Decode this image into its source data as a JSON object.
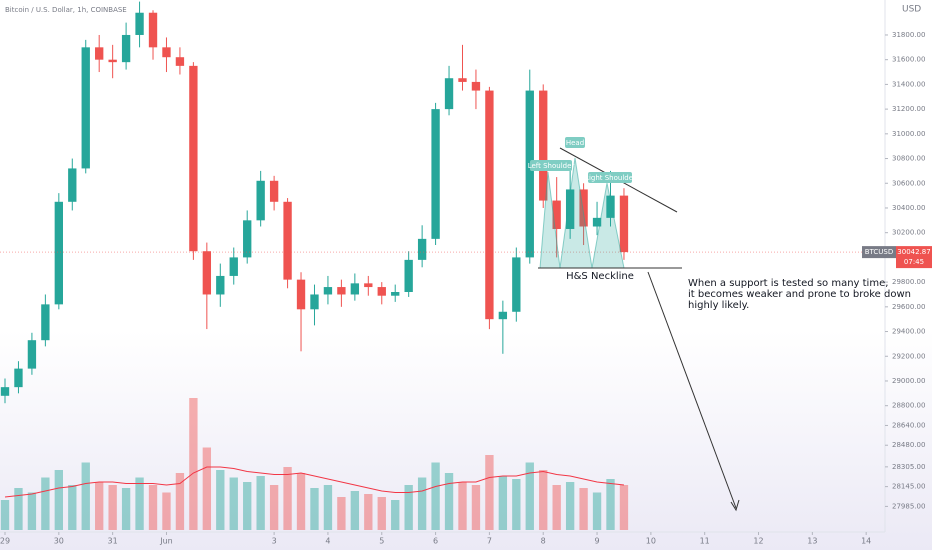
{
  "chart_data": {
    "type": "candlestick",
    "title": "Bitcoin / U.S. Dollar, 1h, COINBASE",
    "currency": "USD",
    "symbol": "BTCUSD",
    "price_label": "30042.87",
    "countdown": "07:45",
    "annotations": {
      "head": "Head",
      "left_shoulder": "Left Shoulder",
      "right_shoulder": "Right Shoulder",
      "neckline": "H&S Neckline",
      "note": [
        "When a support is tested so many time,",
        "it becomes weaker and prone to broke down",
        "highly likely."
      ]
    },
    "up_color": "#26a69a",
    "down_color": "#ef5350",
    "ma_color": "#f23645",
    "x": [
      0,
      0.25,
      0.5,
      0.75,
      1,
      1.25,
      1.5,
      1.75,
      2,
      2.25,
      2.5,
      2.75,
      3,
      3.25,
      3.5,
      3.75,
      4,
      4.25,
      4.5,
      4.75,
      5,
      5.25,
      5.5,
      5.75,
      6,
      6.25,
      6.5,
      6.75,
      7,
      7.25,
      7.5,
      7.75,
      8,
      8.25,
      8.5,
      8.75,
      9,
      9.25,
      9.5,
      9.75,
      10,
      10.25,
      10.5,
      10.75,
      11,
      11.25,
      11.5
    ],
    "open": [
      28880,
      28950,
      29100,
      29330,
      29620,
      30450,
      30720,
      31700,
      31600,
      31580,
      31800,
      31980,
      31700,
      31620,
      31550,
      30050,
      29700,
      29850,
      30000,
      30300,
      30620,
      30450,
      29820,
      29580,
      29700,
      29760,
      29700,
      29790,
      29760,
      29690,
      29720,
      29980,
      30150,
      31200,
      31450,
      31420,
      31350,
      29500,
      29560,
      30000,
      31350,
      30460,
      30230,
      30550,
      30250,
      30320,
      30500
    ],
    "high": [
      29020,
      29160,
      29390,
      29700,
      30520,
      30800,
      31760,
      31800,
      31720,
      31900,
      32070,
      32000,
      31780,
      31700,
      31580,
      30120,
      29950,
      30080,
      30380,
      30700,
      30660,
      30480,
      29880,
      29780,
      29850,
      29820,
      29870,
      29850,
      29800,
      29780,
      30050,
      30260,
      31250,
      31550,
      31720,
      31520,
      31380,
      29650,
      30080,
      31520,
      31400,
      30650,
      30700,
      30600,
      30450,
      30700,
      30560
    ],
    "low": [
      28820,
      28900,
      29050,
      29280,
      29580,
      30380,
      30680,
      31500,
      31450,
      31520,
      31700,
      31600,
      31500,
      31480,
      29980,
      29420,
      29600,
      29780,
      29950,
      30250,
      30380,
      29750,
      29240,
      29450,
      29620,
      29600,
      29650,
      29690,
      29620,
      29640,
      29680,
      29920,
      30100,
      31150,
      31350,
      31200,
      29420,
      29220,
      29480,
      29950,
      30400,
      30000,
      30150,
      30100,
      30180,
      30250,
      29980
    ],
    "close": [
      28950,
      29100,
      29330,
      29620,
      30450,
      30720,
      31700,
      31600,
      31580,
      31800,
      31980,
      31700,
      31620,
      31550,
      30050,
      29700,
      29850,
      30000,
      30300,
      30620,
      30450,
      29820,
      29580,
      29700,
      29760,
      29700,
      29790,
      29760,
      29690,
      29720,
      29980,
      30150,
      31200,
      31450,
      31420,
      31350,
      29500,
      29560,
      30000,
      31350,
      30460,
      30230,
      30550,
      30250,
      30320,
      30500,
      30042.87
    ],
    "volume": [
      20,
      28,
      25,
      35,
      40,
      30,
      45,
      32,
      30,
      28,
      35,
      30,
      25,
      38,
      88,
      55,
      40,
      35,
      32,
      36,
      30,
      42,
      38,
      28,
      30,
      22,
      26,
      24,
      22,
      20,
      30,
      35,
      45,
      38,
      32,
      30,
      50,
      36,
      34,
      45,
      40,
      30,
      32,
      28,
      25,
      34,
      30
    ],
    "volume_ma": [
      22,
      23,
      24,
      26,
      28,
      29,
      31,
      32,
      32,
      31,
      31,
      31,
      30,
      31,
      38,
      42,
      42,
      41,
      39,
      38,
      37,
      37,
      38,
      36,
      34,
      32,
      30,
      28,
      26,
      25,
      25,
      26,
      29,
      31,
      32,
      32,
      35,
      36,
      36,
      38,
      39,
      37,
      36,
      34,
      32,
      31,
      30
    ],
    "volume_lim": [
      0,
      100
    ],
    "xlim": [
      -0.093,
      16.35
    ],
    "xticks": [
      {
        "value": 0,
        "label": "29"
      },
      {
        "value": 1,
        "label": "30"
      },
      {
        "value": 2,
        "label": "31"
      },
      {
        "value": 3,
        "label": "Jun"
      },
      {
        "value": 5,
        "label": "3"
      },
      {
        "value": 6,
        "label": "4"
      },
      {
        "value": 7,
        "label": "5"
      },
      {
        "value": 8,
        "label": "6"
      },
      {
        "value": 9,
        "label": "7"
      },
      {
        "value": 10,
        "label": "8"
      },
      {
        "value": 11,
        "label": "9"
      },
      {
        "value": 12,
        "label": "10"
      },
      {
        "value": 13,
        "label": "11"
      },
      {
        "value": 14,
        "label": "12"
      },
      {
        "value": 15,
        "label": "13"
      },
      {
        "value": 16,
        "label": "14"
      }
    ],
    "ylim": [
      27794,
      32083
    ],
    "yticks": [
      {
        "value": 31800,
        "label": "31800.00"
      },
      {
        "value": 31600,
        "label": "31600.00"
      },
      {
        "value": 31400,
        "label": "31400.00"
      },
      {
        "value": 31200,
        "label": "31200.00"
      },
      {
        "value": 31000,
        "label": "31000.00"
      },
      {
        "value": 30800,
        "label": "30800.00"
      },
      {
        "value": 30600,
        "label": "30600.00"
      },
      {
        "value": 30400,
        "label": "30400.00"
      },
      {
        "value": 30200,
        "label": "30200.00"
      },
      {
        "value": 29800,
        "label": "29800.00"
      },
      {
        "value": 29600,
        "label": "29600.00"
      },
      {
        "value": 29400,
        "label": "29400.00"
      },
      {
        "value": 29200,
        "label": "29200.00"
      },
      {
        "value": 29000,
        "label": "29000.00"
      },
      {
        "value": 28800,
        "label": "28800.00"
      },
      {
        "value": 28640,
        "label": "28640.00"
      },
      {
        "value": 28480,
        "label": "28480.00"
      },
      {
        "value": 28305,
        "label": "28305.00"
      },
      {
        "value": 28145,
        "label": "28145.00"
      },
      {
        "value": 27985,
        "label": "27985.00"
      }
    ]
  }
}
